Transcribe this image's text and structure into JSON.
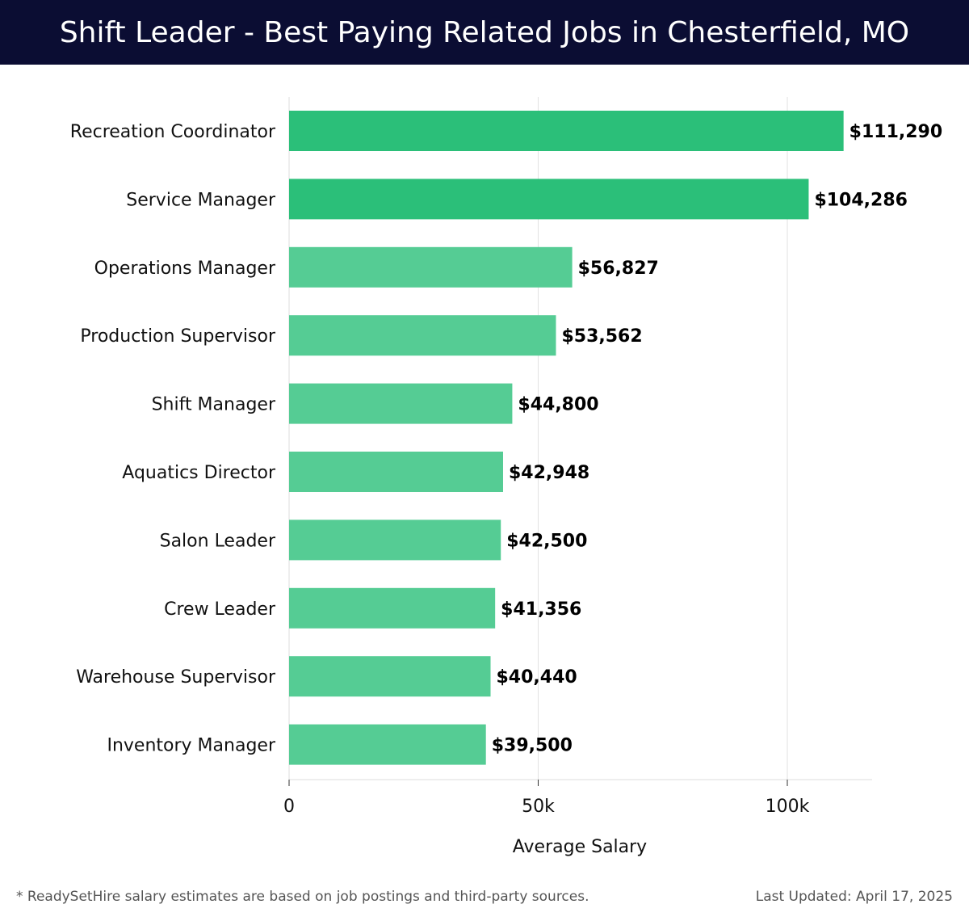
{
  "header": {
    "title": "Shift Leader - Best Paying Related Jobs in Chesterfield, MO"
  },
  "colors": {
    "header_bg": "#0b0d33",
    "bar_top": "#2bbf79",
    "bar_rest": "#55cc94"
  },
  "chart_data": {
    "type": "bar",
    "orientation": "horizontal",
    "categories": [
      "Recreation Coordinator",
      "Service Manager",
      "Operations Manager",
      "Production Supervisor",
      "Shift Manager",
      "Aquatics Director",
      "Salon Leader",
      "Crew Leader",
      "Warehouse Supervisor",
      "Inventory Manager"
    ],
    "values": [
      111290,
      104286,
      56827,
      53562,
      44800,
      42948,
      42500,
      41356,
      40440,
      39500
    ],
    "data_labels": [
      "$111,290",
      "$104,286",
      "$56,827",
      "$53,562",
      "$44,800",
      "$42,948",
      "$42,500",
      "$41,356",
      "$40,440",
      "$39,500"
    ],
    "xlabel": "Average Salary",
    "xlim": [
      0,
      117000
    ],
    "xticks": [
      0,
      50000,
      100000
    ],
    "xtick_labels": [
      "0",
      "50k",
      "100k"
    ],
    "grid": true
  },
  "footer": {
    "note": "* ReadySetHire salary estimates are based on job postings and third-party sources.",
    "updated": "Last Updated: April 17, 2025"
  }
}
